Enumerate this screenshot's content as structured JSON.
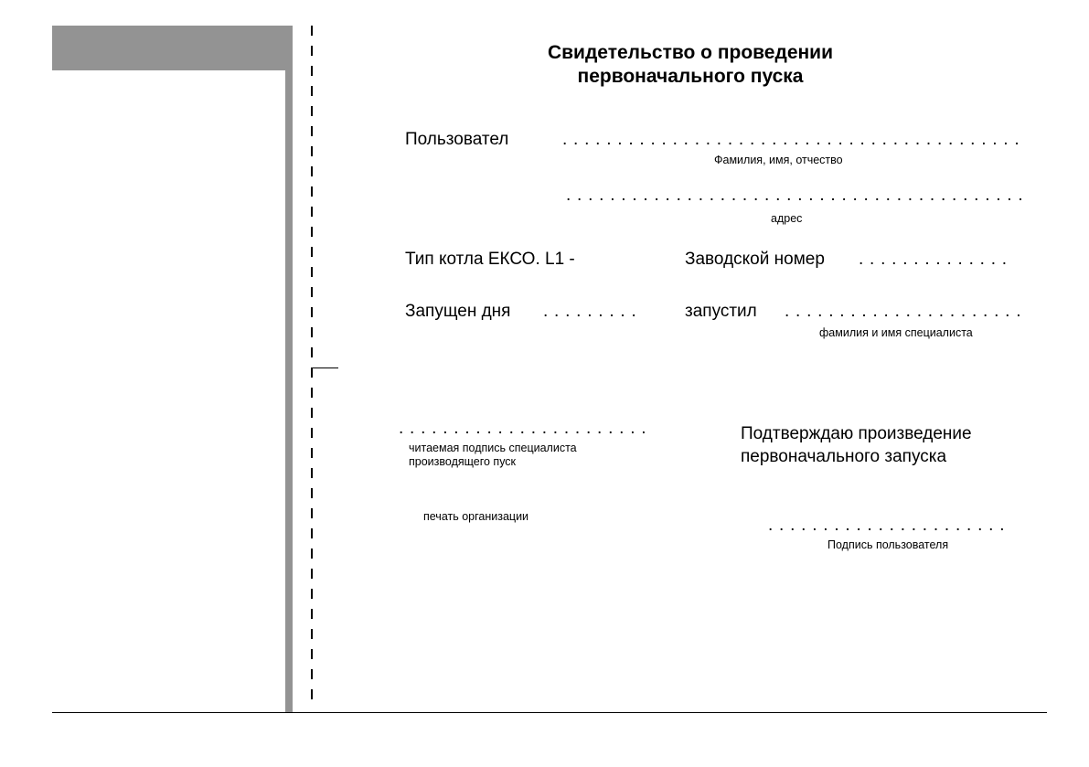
{
  "colors": {
    "bar": "#939393"
  },
  "title_line1": "Свидетельство о проведении",
  "title_line2": "первоначального пуска",
  "user_label": "Пользовател",
  "user_dots": ". . . . . . . . . . . . . . . . . . . . . . . . . . . . . . . . . . . . . . . . . .",
  "user_hint": "Фамилия, имя, отчество",
  "address_dots": ". . . . . . . . . . . . . . . . . . . . . . . . . . . . . . . . . . . . . . . . . .",
  "address_hint": "адрес",
  "boiler_type_label": "Тип котла ЕКСО. L1  -",
  "serial_label": "Заводской номер",
  "serial_dots": ". . . . . . . . . . . . . .",
  "started_label": "Запущен дня",
  "started_dots": ". . . . . . . . .",
  "launched_by_label": "запустил",
  "launched_by_dots": ". . . . . . . . . . . . . . . . . . . . . .",
  "launched_by_hint": "фамилия и имя специалиста",
  "specialist_dots": ". . . . . . . . . . . . . . . . . . . . . . .",
  "specialist_hint_line1": "читаемая подпись специалиста",
  "specialist_hint_line2": "производящего пуск",
  "stamp_hint": "печать организации",
  "confirm_line1": "Подтверждаю произведение",
  "confirm_line2": "первоначального запуска",
  "user_sign_dots": ". . . . . . . . . . . . . . . . . . . . . .",
  "user_sign_hint": "Подпись пользователя"
}
